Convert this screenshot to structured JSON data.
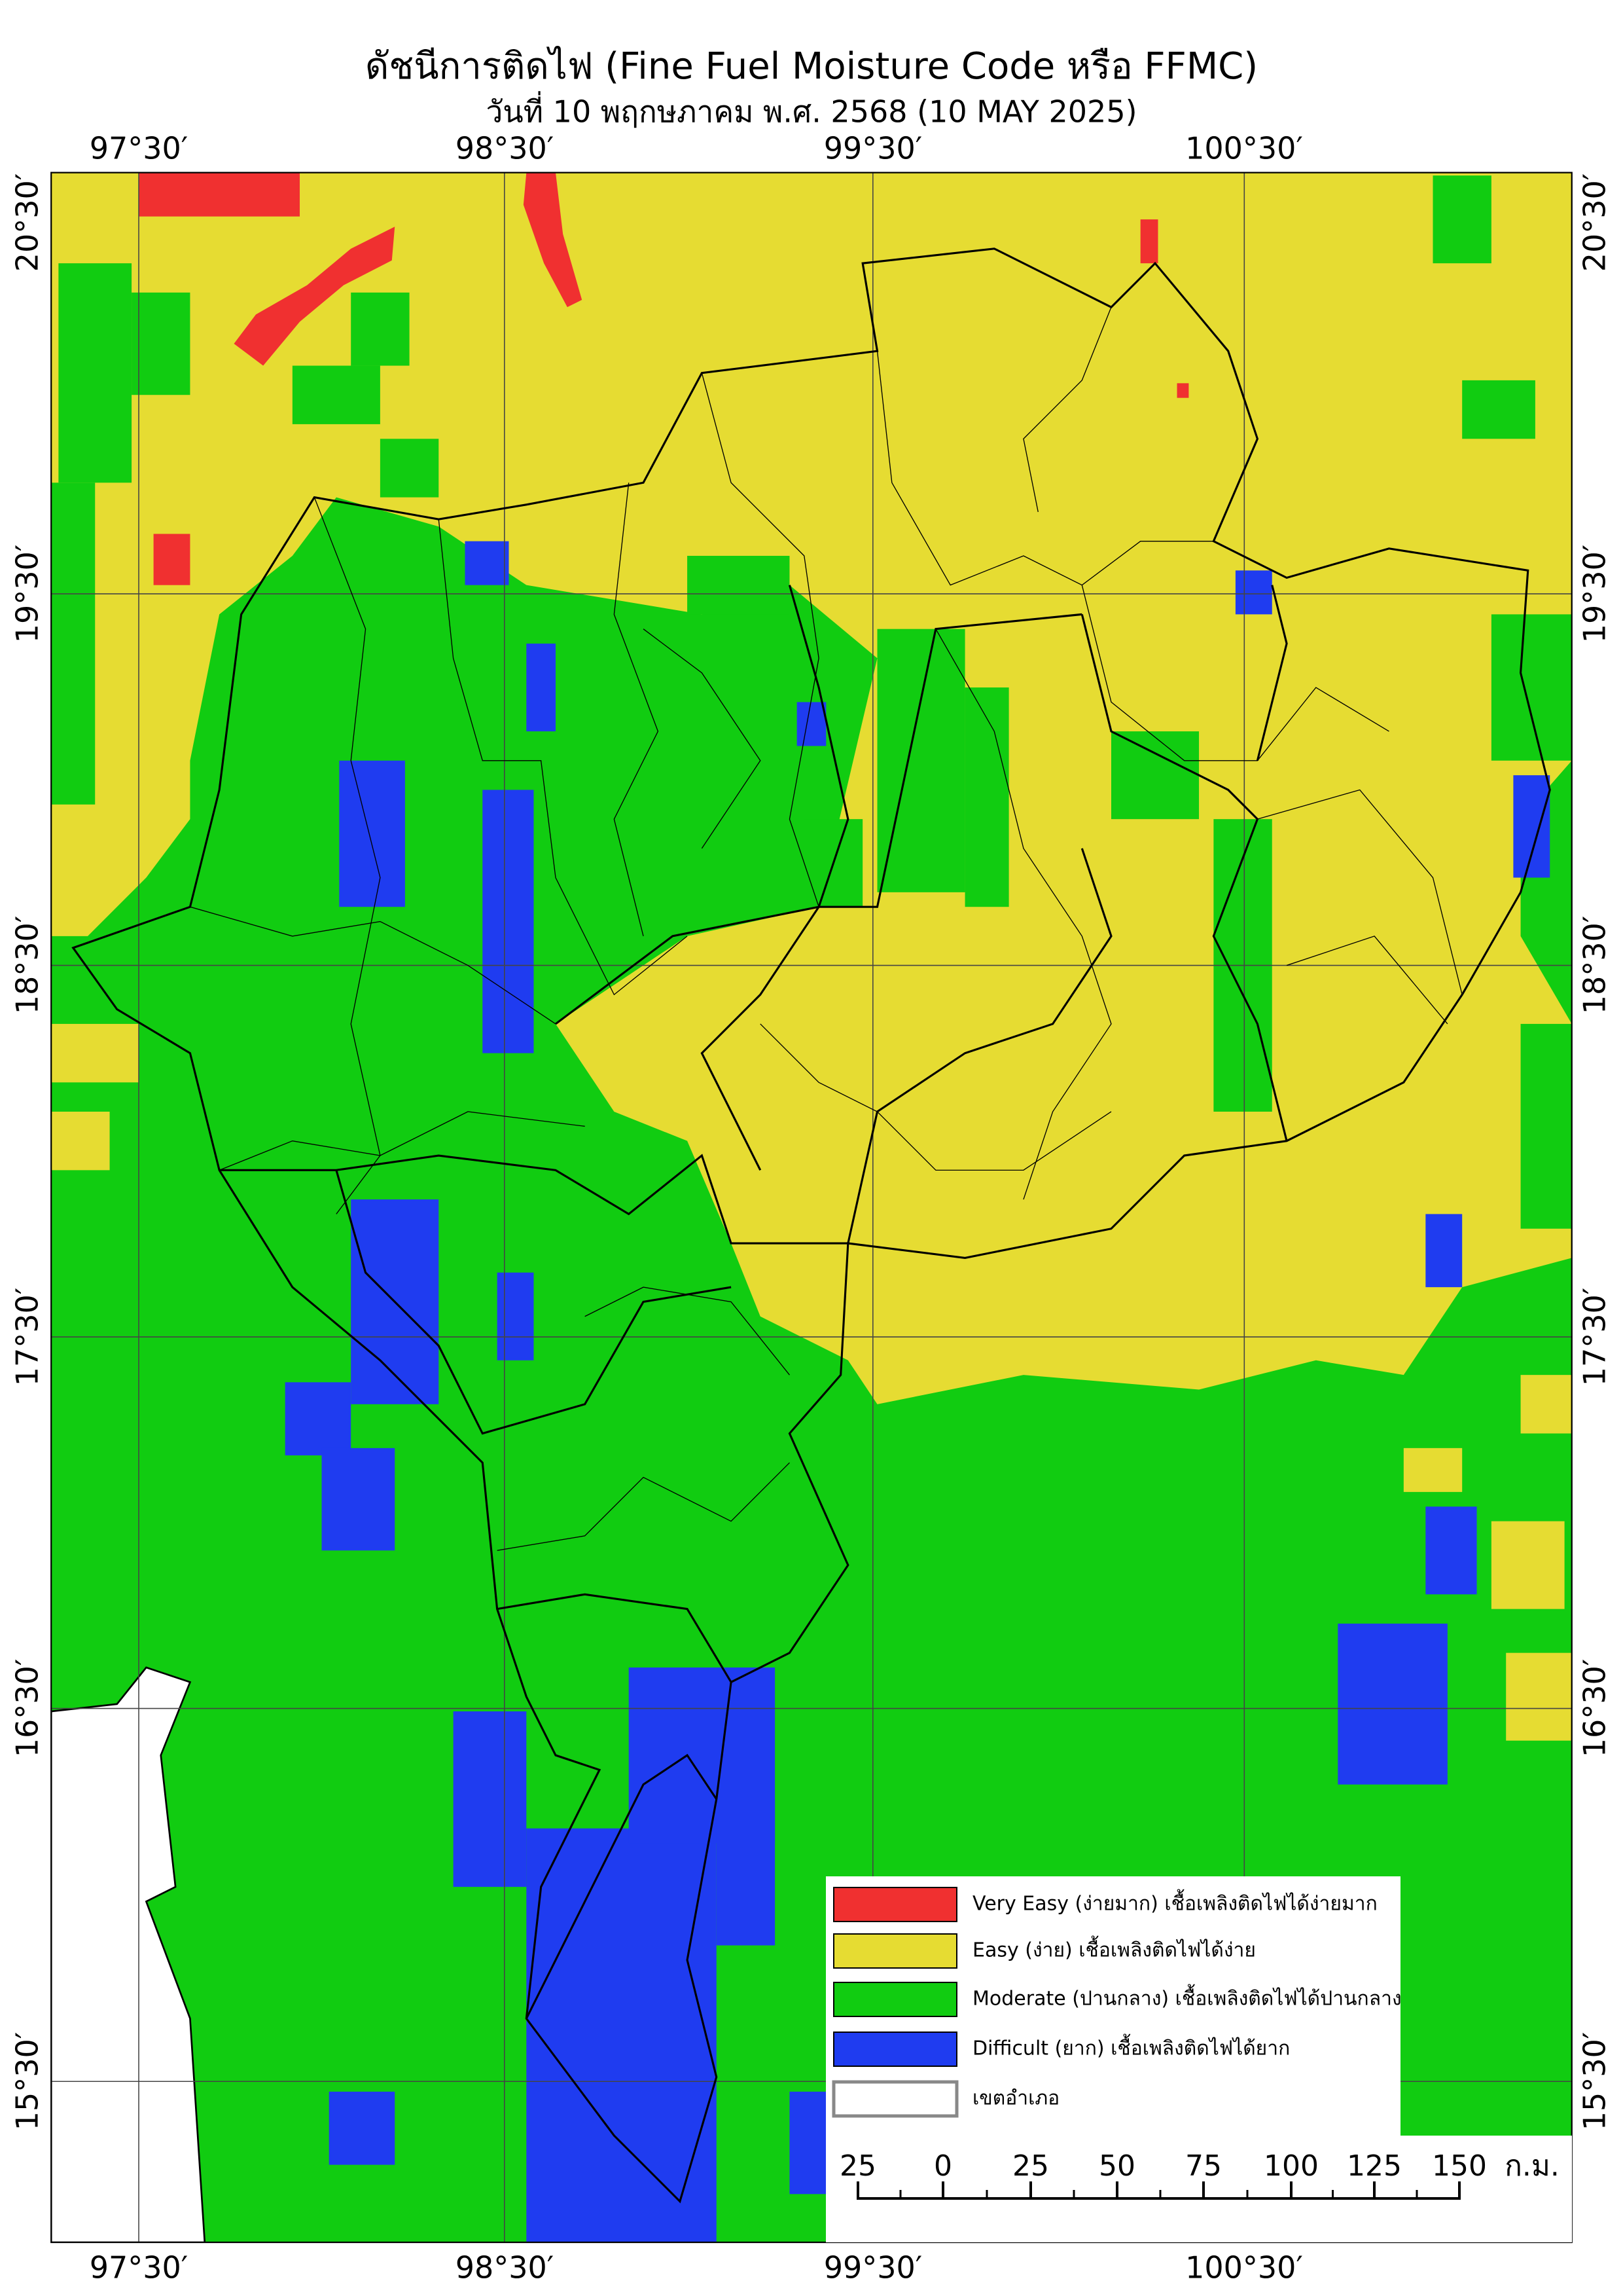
{
  "title": "ดัชนีการติดไฟ (Fine Fuel Moisture Code หรือ FFMC)",
  "subtitle": "วันที่ 10 พฤกษภาคม พ.ศ. 2568 (10 MAY 2025)",
  "longitude_labels": [
    "97°30′",
    "98°30′",
    "99°30′",
    "100°30′"
  ],
  "latitude_labels": [
    "20°30′",
    "19°30′",
    "18°30′",
    "17°30′",
    "16°30′",
    "15°30′"
  ],
  "legend": [
    {
      "label": "Very Easy (ง่ายมาก) เชื้อเพลิงติดไฟได้ง่ายมาก",
      "color": "#f03030"
    },
    {
      "label": "Easy (ง่าย) เชื้อเพลิงติดไฟได้ง่าย",
      "color": "#e6dc32"
    },
    {
      "label": "Moderate (ปานกลาง) เชื้อเพลิงติดไฟได้ปานกลาง",
      "color": "#11cc11"
    },
    {
      "label": "Difficult (ยาก) เชื้อเพลิงติดไฟได้ยาก",
      "color": "#1f3cf0"
    },
    {
      "label": "เขตอำเภอ",
      "color": "#ffffff"
    }
  ],
  "scale_bar": {
    "labels": [
      25,
      0,
      25,
      50,
      75,
      100,
      125,
      150
    ],
    "unit": "ก.ม."
  }
}
